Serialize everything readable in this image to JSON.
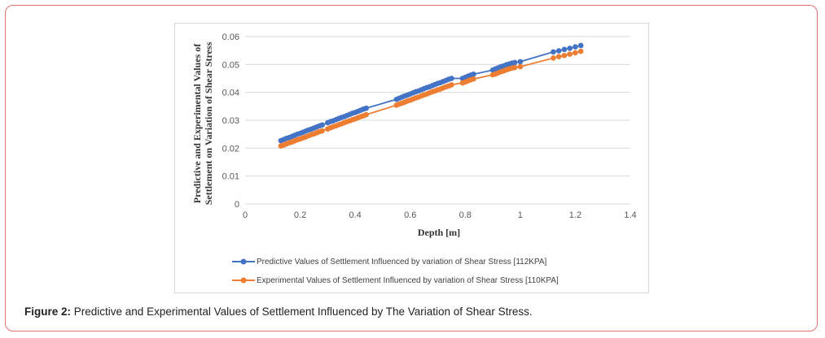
{
  "caption": {
    "label": "Figure 2:",
    "text": " Predictive and Experimental Values of Settlement Influenced by The Variation of Shear Stress."
  },
  "colors": {
    "predictive": "#4472c4",
    "experimental": "#ed7d31",
    "grid": "#d9d9d9",
    "frame": "#e07070"
  },
  "chart_data": {
    "type": "line",
    "xlabel": "Depth [m]",
    "ylabel_lines": [
      "Predictive and Experimental Values of",
      "Settlement on Variation of Shear Stress"
    ],
    "xlim": [
      0,
      1.4
    ],
    "ylim": [
      0,
      0.06
    ],
    "x_ticks": [
      "0",
      "0.2",
      "0.4",
      "0.6",
      "0.8",
      "1",
      "1.2",
      "1.4"
    ],
    "y_ticks": [
      "0",
      "0.01",
      "0.02",
      "0.03",
      "0.04",
      "0.05",
      "0.06"
    ],
    "grid": true,
    "legend_position": "bottom",
    "series": [
      {
        "name": "Predictive Values of Settlement Influenced by variation of Shear Stress [112KPA]",
        "color": "#4472c4",
        "x": [
          0.13,
          0.14,
          0.15,
          0.16,
          0.17,
          0.18,
          0.19,
          0.2,
          0.21,
          0.22,
          0.23,
          0.24,
          0.25,
          0.26,
          0.27,
          0.28,
          0.3,
          0.31,
          0.32,
          0.33,
          0.34,
          0.35,
          0.36,
          0.37,
          0.38,
          0.39,
          0.4,
          0.41,
          0.42,
          0.43,
          0.44,
          0.55,
          0.56,
          0.57,
          0.58,
          0.59,
          0.6,
          0.61,
          0.62,
          0.63,
          0.64,
          0.65,
          0.66,
          0.67,
          0.68,
          0.69,
          0.7,
          0.71,
          0.72,
          0.73,
          0.74,
          0.75,
          0.79,
          0.8,
          0.81,
          0.82,
          0.83,
          0.9,
          0.91,
          0.92,
          0.93,
          0.94,
          0.95,
          0.96,
          0.97,
          0.98,
          1.0,
          1.12,
          1.14,
          1.16,
          1.18,
          1.2,
          1.22
        ],
        "y": [
          0.0227,
          0.0231,
          0.0235,
          0.0238,
          0.0242,
          0.0246,
          0.025,
          0.0253,
          0.0257,
          0.0261,
          0.0265,
          0.0268,
          0.0272,
          0.0276,
          0.028,
          0.0283,
          0.0291,
          0.0295,
          0.0298,
          0.0302,
          0.0306,
          0.031,
          0.0313,
          0.0317,
          0.0321,
          0.0325,
          0.0328,
          0.0332,
          0.0336,
          0.034,
          0.0343,
          0.0375,
          0.0379,
          0.0383,
          0.0387,
          0.039,
          0.0394,
          0.0398,
          0.0402,
          0.0405,
          0.0409,
          0.0413,
          0.0417,
          0.042,
          0.0424,
          0.0428,
          0.0432,
          0.0435,
          0.0439,
          0.0443,
          0.0447,
          0.045,
          0.045,
          0.0454,
          0.0458,
          0.0462,
          0.0465,
          0.048,
          0.0484,
          0.0488,
          0.0492,
          0.0495,
          0.0499,
          0.0502,
          0.0505,
          0.0507,
          0.051,
          0.0545,
          0.0549,
          0.0554,
          0.0558,
          0.0563,
          0.0568
        ]
      },
      {
        "name": "Experimental  Values of Settlement Influenced by variation of Shear Stress [110KPA]",
        "color": "#ed7d31",
        "x": [
          0.13,
          0.14,
          0.15,
          0.16,
          0.17,
          0.18,
          0.19,
          0.2,
          0.21,
          0.22,
          0.23,
          0.24,
          0.25,
          0.26,
          0.27,
          0.28,
          0.3,
          0.31,
          0.32,
          0.33,
          0.34,
          0.35,
          0.36,
          0.37,
          0.38,
          0.39,
          0.4,
          0.41,
          0.42,
          0.43,
          0.44,
          0.55,
          0.56,
          0.57,
          0.58,
          0.59,
          0.6,
          0.61,
          0.62,
          0.63,
          0.64,
          0.65,
          0.66,
          0.67,
          0.68,
          0.69,
          0.7,
          0.71,
          0.72,
          0.73,
          0.74,
          0.75,
          0.79,
          0.8,
          0.81,
          0.82,
          0.83,
          0.9,
          0.91,
          0.92,
          0.93,
          0.94,
          0.95,
          0.96,
          0.97,
          0.98,
          1.0,
          1.12,
          1.14,
          1.16,
          1.18,
          1.2,
          1.22
        ],
        "y": [
          0.0208,
          0.0211,
          0.0215,
          0.0219,
          0.0222,
          0.0226,
          0.023,
          0.0233,
          0.0237,
          0.024,
          0.0244,
          0.0248,
          0.0251,
          0.0255,
          0.0259,
          0.0262,
          0.0269,
          0.0273,
          0.0277,
          0.028,
          0.0284,
          0.0287,
          0.0291,
          0.0295,
          0.0298,
          0.0302,
          0.0305,
          0.0309,
          0.0313,
          0.0316,
          0.032,
          0.0354,
          0.0358,
          0.0361,
          0.0365,
          0.0369,
          0.0372,
          0.0376,
          0.038,
          0.0383,
          0.0387,
          0.0391,
          0.0394,
          0.0398,
          0.0402,
          0.0405,
          0.0409,
          0.0412,
          0.0416,
          0.042,
          0.0423,
          0.0427,
          0.0434,
          0.0437,
          0.0441,
          0.0445,
          0.0448,
          0.0463,
          0.0466,
          0.047,
          0.0474,
          0.0477,
          0.0481,
          0.0484,
          0.0487,
          0.0489,
          0.0492,
          0.0523,
          0.0528,
          0.0532,
          0.0537,
          0.0542,
          0.0547
        ]
      }
    ]
  }
}
